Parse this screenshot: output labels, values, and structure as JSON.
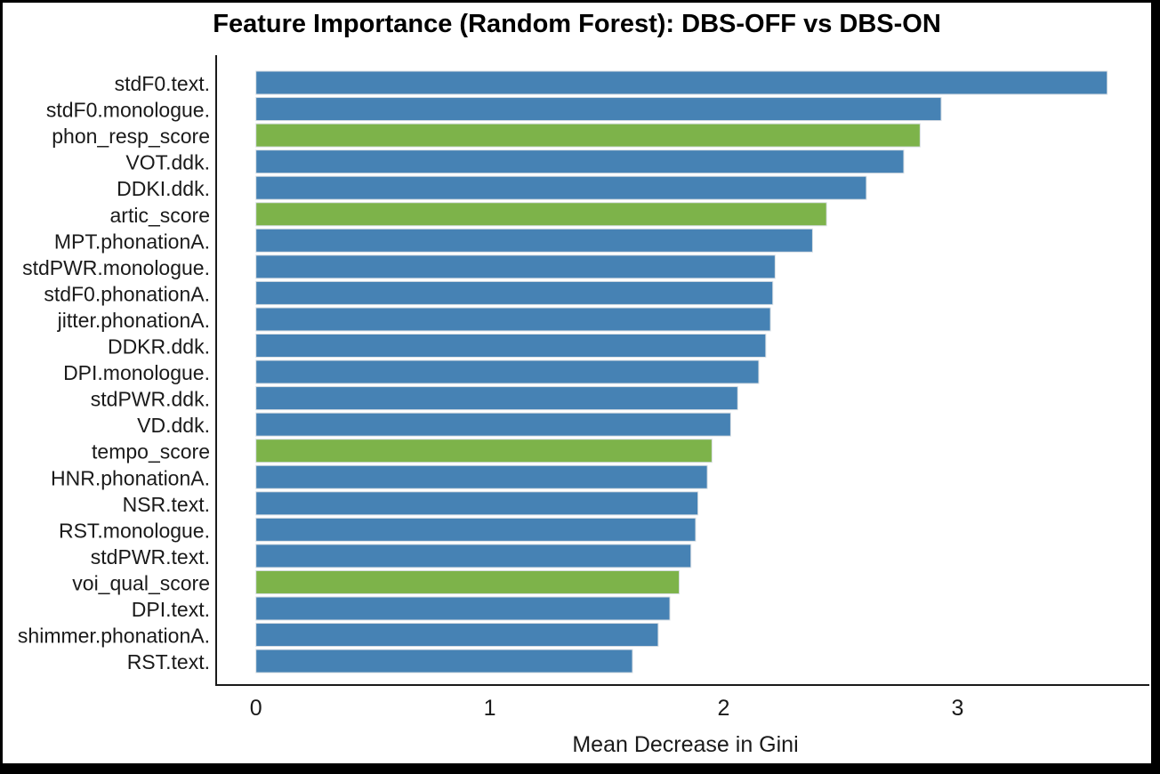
{
  "chart_data": {
    "type": "bar",
    "orientation": "horizontal",
    "title": "Feature Importance (Random Forest): DBS-OFF vs DBS-ON",
    "xlabel": "Mean Decrease in Gini",
    "ylabel": "",
    "xlim": [
      -0.17,
      3.82
    ],
    "x_ticks": [
      "0",
      "1",
      "2",
      "3"
    ],
    "x_tick_values": [
      0,
      1,
      2,
      3
    ],
    "grid": false,
    "legend_position": "none",
    "colors": {
      "blue": "#4682B4",
      "green": "#7DB34A"
    },
    "highlighted_features": [
      "phon_resp_score",
      "artic_score",
      "tempo_score",
      "voi_qual_score"
    ],
    "categories": [
      "stdF0.text.",
      "stdF0.monologue.",
      "phon_resp_score",
      "VOT.ddk.",
      "DDKI.ddk.",
      "artic_score",
      "MPT.phonationA.",
      "stdPWR.monologue.",
      "stdF0.phonationA.",
      "jitter.phonationA.",
      "DDKR.ddk.",
      "DPI.monologue.",
      "stdPWR.ddk.",
      "VD.ddk.",
      "tempo_score",
      "HNR.phonationA.",
      "NSR.text.",
      "RST.monologue.",
      "stdPWR.text.",
      "voi_qual_score",
      "DPI.text.",
      "shimmer.phonationA.",
      "RST.text."
    ],
    "values": [
      3.64,
      2.93,
      2.84,
      2.77,
      2.61,
      2.44,
      2.38,
      2.22,
      2.21,
      2.2,
      2.18,
      2.15,
      2.06,
      2.03,
      1.95,
      1.93,
      1.89,
      1.88,
      1.86,
      1.81,
      1.77,
      1.72,
      1.61
    ],
    "bar_colors": [
      "blue",
      "blue",
      "green",
      "blue",
      "blue",
      "green",
      "blue",
      "blue",
      "blue",
      "blue",
      "blue",
      "blue",
      "blue",
      "blue",
      "green",
      "blue",
      "blue",
      "blue",
      "blue",
      "green",
      "blue",
      "blue",
      "blue"
    ]
  }
}
